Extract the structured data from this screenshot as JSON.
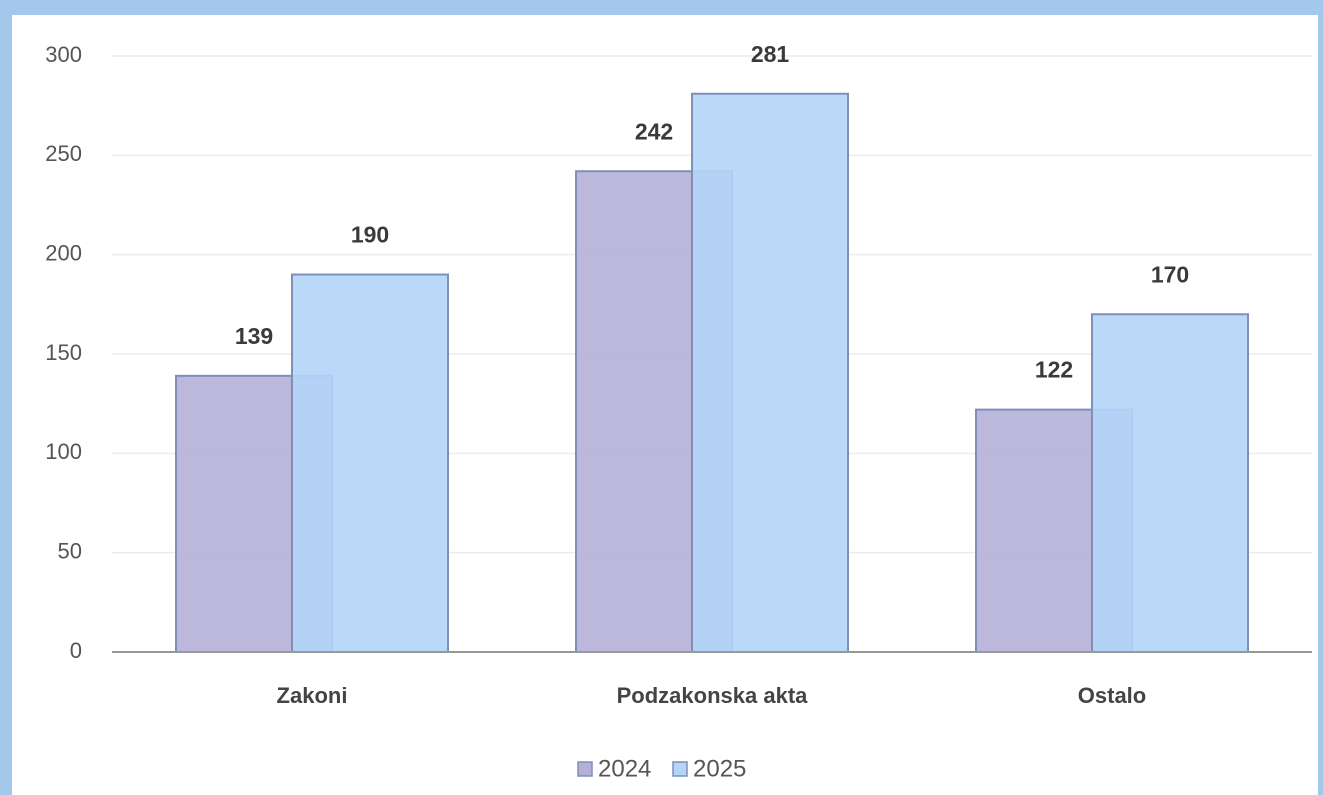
{
  "chart_data": {
    "type": "bar",
    "categories": [
      "Zakoni",
      "Podzakonska akta",
      "Ostalo"
    ],
    "series": [
      {
        "name": "2024",
        "color": "#b5b0d8",
        "values": [
          139,
          242,
          122
        ]
      },
      {
        "name": "2025",
        "color": "#b2d5f8",
        "values": [
          190,
          281,
          170
        ]
      }
    ],
    "value_labels_shown": true,
    "ylim": [
      0,
      300
    ],
    "yticks": [
      0,
      50,
      100,
      150,
      200,
      250,
      300
    ],
    "grid": true,
    "legend": "bottom"
  }
}
